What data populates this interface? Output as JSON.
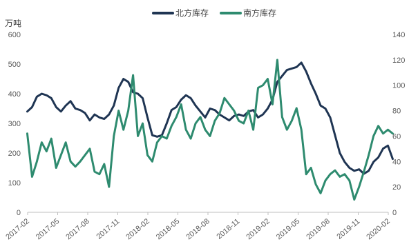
{
  "chart_data": {
    "type": "line",
    "title": "",
    "left_axis_title": "万吨",
    "left_axis": {
      "min": 0,
      "max": 600,
      "ticks": [
        "0",
        "100",
        "200",
        "300",
        "400",
        "500",
        "600"
      ]
    },
    "right_axis": {
      "min": 0,
      "max": 140,
      "ticks": [
        "0",
        "20",
        "40",
        "60",
        "80",
        "100",
        "120",
        "140"
      ]
    },
    "x_tick_labels": [
      "2017-02",
      "2017-05",
      "2017-08",
      "2017-11",
      "2018-02",
      "2018-05",
      "2018-08",
      "2018-11",
      "2019-02",
      "2019-05",
      "2019-08",
      "2019-11",
      "2020-02"
    ],
    "grid": false,
    "legend_position": "top-center",
    "colors": {
      "north": "#1f3553",
      "south": "#2e8b6f",
      "axis": "#bfbfbf"
    },
    "series": [
      {
        "name": "北方库存",
        "axis": "left",
        "color": "#1f3553",
        "x": [
          2017.08,
          2017.12,
          2017.16,
          2017.2,
          2017.24,
          2017.28,
          2017.32,
          2017.36,
          2017.4,
          2017.44,
          2017.48,
          2017.52,
          2017.56,
          2017.6,
          2017.64,
          2017.68,
          2017.72,
          2017.76,
          2017.8,
          2017.84,
          2017.88,
          2017.92,
          2017.96,
          2018.0,
          2018.04,
          2018.08,
          2018.12,
          2018.16,
          2018.2,
          2018.24,
          2018.28,
          2018.32,
          2018.36,
          2018.4,
          2018.44,
          2018.48,
          2018.52,
          2018.56,
          2018.6,
          2018.64,
          2018.68,
          2018.72,
          2018.76,
          2018.8,
          2018.84,
          2018.88,
          2018.92,
          2018.96,
          2019.0,
          2019.04,
          2019.08,
          2019.12,
          2019.16,
          2019.2,
          2019.24,
          2019.28,
          2019.32,
          2019.36,
          2019.4,
          2019.44,
          2019.48,
          2019.52,
          2019.56,
          2019.6,
          2019.64,
          2019.68,
          2019.72,
          2019.76,
          2019.8,
          2019.84,
          2019.88,
          2019.92,
          2019.96,
          2020.0,
          2020.04,
          2020.08,
          2020.12
        ],
        "values": [
          340,
          355,
          390,
          400,
          395,
          385,
          355,
          340,
          360,
          375,
          350,
          345,
          335,
          310,
          330,
          320,
          315,
          330,
          360,
          420,
          450,
          440,
          405,
          400,
          385,
          320,
          260,
          255,
          260,
          300,
          345,
          355,
          380,
          395,
          385,
          360,
          340,
          320,
          350,
          345,
          330,
          320,
          310,
          325,
          330,
          325,
          340,
          345,
          320,
          330,
          350,
          380,
          440,
          460,
          480,
          485,
          490,
          505,
          475,
          435,
          400,
          360,
          350,
          320,
          260,
          200,
          170,
          150,
          140,
          145,
          130,
          140,
          170,
          185,
          215,
          225,
          180
        ]
      },
      {
        "name": "南方库存",
        "axis": "right",
        "color": "#2e8b6f",
        "x": [
          2017.08,
          2017.12,
          2017.16,
          2017.2,
          2017.24,
          2017.28,
          2017.32,
          2017.36,
          2017.4,
          2017.44,
          2017.48,
          2017.52,
          2017.56,
          2017.6,
          2017.64,
          2017.68,
          2017.72,
          2017.76,
          2017.8,
          2017.84,
          2017.88,
          2017.92,
          2017.96,
          2018.0,
          2018.04,
          2018.08,
          2018.12,
          2018.16,
          2018.2,
          2018.24,
          2018.28,
          2018.32,
          2018.36,
          2018.4,
          2018.44,
          2018.48,
          2018.52,
          2018.56,
          2018.6,
          2018.64,
          2018.68,
          2018.72,
          2018.76,
          2018.8,
          2018.84,
          2018.88,
          2018.92,
          2018.96,
          2019.0,
          2019.04,
          2019.08,
          2019.12,
          2019.16,
          2019.2,
          2019.24,
          2019.28,
          2019.32,
          2019.36,
          2019.4,
          2019.44,
          2019.48,
          2019.52,
          2019.56,
          2019.6,
          2019.64,
          2019.68,
          2019.72,
          2019.76,
          2019.8,
          2019.84,
          2019.88,
          2019.92,
          2019.96,
          2020.0,
          2020.04,
          2020.08,
          2020.12
        ],
        "values": [
          62,
          28,
          40,
          55,
          48,
          58,
          35,
          45,
          55,
          40,
          36,
          40,
          45,
          50,
          32,
          30,
          38,
          20,
          60,
          80,
          65,
          80,
          108,
          60,
          70,
          45,
          40,
          55,
          60,
          58,
          68,
          75,
          85,
          65,
          58,
          70,
          75,
          65,
          60,
          72,
          78,
          90,
          85,
          80,
          72,
          70,
          80,
          65,
          98,
          100,
          105,
          85,
          120,
          75,
          65,
          72,
          82,
          65,
          30,
          35,
          22,
          15,
          25,
          30,
          33,
          28,
          30,
          25,
          10,
          20,
          32,
          45,
          60,
          68,
          62,
          65,
          62
        ]
      }
    ]
  }
}
